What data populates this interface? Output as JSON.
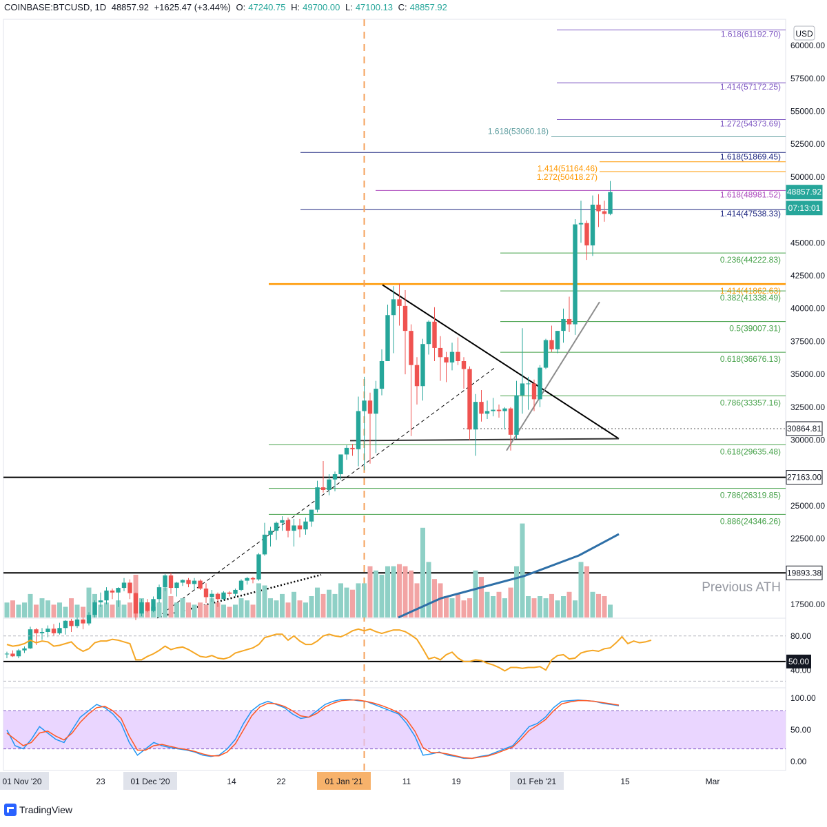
{
  "header": {
    "symbol": "COINBASE:BTCUSD, 1D",
    "price": "48857.92",
    "change": "+1625.47 (+3.44%)",
    "o_label": "O:",
    "o_value": "47240.75",
    "h_label": "H:",
    "h_value": "49700.00",
    "l_label": "L:",
    "l_value": "47100.13",
    "c_label": "C:",
    "c_value": "48857.92"
  },
  "currency_badge": "USD",
  "annotation": "Previous ATH",
  "branding": "TradingView",
  "colors": {
    "up": "#26a69a",
    "down": "#ef5350",
    "fib_green": "#43a047",
    "fib_purple": "#7e57c2",
    "fib_blue": "#1a237e",
    "fib_orange": "#ff9800",
    "fib_magenta": "#ab47bc",
    "rsi": "#f5a623",
    "stoch_k": "#2196f3",
    "stoch_d": "#ff5722",
    "ma": "#2e6fa7",
    "stoch_band": "#e1c4ff"
  },
  "chart_data": {
    "type": "candlestick",
    "symbol": "COINBASE:BTCUSD",
    "timeframe": "1D",
    "price_axis": {
      "ticks": [
        "60000.00",
        "57500.00",
        "55000.00",
        "52500.00",
        "50000.00",
        "45000.00",
        "42500.00",
        "40000.00",
        "37500.00",
        "35000.00",
        "32500.00",
        "30000.00",
        "25000.00",
        "22500.00",
        "17500.00"
      ],
      "ylim": [
        16500,
        62000
      ],
      "tags": [
        {
          "label": "48857.92",
          "value": 48857.92,
          "color": "#26a69a"
        },
        {
          "label": "07:13:01",
          "value": 47650,
          "color": "#26a69a"
        },
        {
          "label": "30864.81",
          "value": 30864.81,
          "color": "#ffffff"
        },
        {
          "label": "27163.00",
          "value": 27163,
          "color": "#ffffff"
        },
        {
          "label": "19893.38",
          "value": 19893.38,
          "color": "#ffffff"
        }
      ]
    },
    "x_axis": {
      "ticks": [
        "01 Nov '20",
        "23",
        "01 Dec '20",
        "14",
        "22",
        "01 Jan '21",
        "11",
        "19",
        "01 Feb '21",
        "15",
        "Mar"
      ],
      "highlighted": [
        "01 Nov '20",
        "01 Dec '20",
        "01 Jan '21",
        "01 Feb '21"
      ]
    },
    "fib_levels": [
      {
        "label": "1.618(61192.70)",
        "value": 61192.7,
        "color": "#7e57c2"
      },
      {
        "label": "1.414(57172.25)",
        "value": 57172.25,
        "color": "#7e57c2"
      },
      {
        "label": "1.272(54373.69)",
        "value": 54373.69,
        "color": "#7e57c2"
      },
      {
        "label": "1.618(53060.18)",
        "value": 53060.18,
        "color": "#5f9ea0"
      },
      {
        "label": "1.618(51869.45)",
        "value": 51869.45,
        "color": "#1a237e"
      },
      {
        "label": "1.414(51164.46)",
        "value": 51164.46,
        "color": "#ff9800"
      },
      {
        "label": "1.272(50418.27)",
        "value": 50418.27,
        "color": "#ff9800"
      },
      {
        "label": "1.618(48981.52)",
        "value": 48981.52,
        "color": "#ab47bc"
      },
      {
        "label": "1.414(47538.33)",
        "value": 47538.33,
        "color": "#1a237e"
      },
      {
        "label": "0.236(44222.83)",
        "value": 44222.83,
        "color": "#43a047"
      },
      {
        "label": "1.414(41862.63)",
        "value": 41862.63,
        "color": "#ff9800"
      },
      {
        "label": "0.382(41338.49)",
        "value": 41338.49,
        "color": "#43a047"
      },
      {
        "label": "0.5(39007.31)",
        "value": 39007.31,
        "color": "#43a047"
      },
      {
        "label": "0.618(36676.13)",
        "value": 36676.13,
        "color": "#43a047"
      },
      {
        "label": "0.786(33357.16)",
        "value": 33357.16,
        "color": "#43a047"
      },
      {
        "label": "0.618(29635.48)",
        "value": 29635.48,
        "color": "#43a047"
      },
      {
        "label": "0.786(26319.85)",
        "value": 26319.85,
        "color": "#43a047"
      },
      {
        "label": "0.886(24346.26)",
        "value": 24346.26,
        "color": "#43a047"
      }
    ],
    "candles": [
      {
        "o": 13700,
        "h": 13900,
        "l": 13400,
        "c": 13750
      },
      {
        "o": 13750,
        "h": 14000,
        "l": 13500,
        "c": 13550
      },
      {
        "o": 13550,
        "h": 14100,
        "l": 13400,
        "c": 14000
      },
      {
        "o": 14000,
        "h": 14300,
        "l": 13800,
        "c": 14150
      },
      {
        "o": 14150,
        "h": 15800,
        "l": 14100,
        "c": 15600
      },
      {
        "o": 15600,
        "h": 15700,
        "l": 14400,
        "c": 15300
      },
      {
        "o": 15300,
        "h": 15700,
        "l": 14800,
        "c": 15400
      },
      {
        "o": 15400,
        "h": 15900,
        "l": 15000,
        "c": 15650
      },
      {
        "o": 15650,
        "h": 16000,
        "l": 15100,
        "c": 15300
      },
      {
        "o": 15300,
        "h": 16100,
        "l": 15200,
        "c": 15700
      },
      {
        "o": 15700,
        "h": 16300,
        "l": 15200,
        "c": 16250
      },
      {
        "o": 16250,
        "h": 16400,
        "l": 15400,
        "c": 15850
      },
      {
        "o": 15850,
        "h": 16500,
        "l": 15700,
        "c": 16350
      },
      {
        "o": 16350,
        "h": 16500,
        "l": 15600,
        "c": 16050
      },
      {
        "o": 16050,
        "h": 16900,
        "l": 15900,
        "c": 16700
      },
      {
        "o": 16700,
        "h": 17800,
        "l": 16500,
        "c": 17650
      },
      {
        "o": 17650,
        "h": 18400,
        "l": 17300,
        "c": 17800
      },
      {
        "o": 17800,
        "h": 18800,
        "l": 17500,
        "c": 18550
      },
      {
        "o": 18550,
        "h": 18700,
        "l": 17900,
        "c": 18400
      },
      {
        "o": 18400,
        "h": 18800,
        "l": 17300,
        "c": 18750
      },
      {
        "o": 18750,
        "h": 19500,
        "l": 18500,
        "c": 19150
      },
      {
        "o": 19150,
        "h": 19400,
        "l": 17900,
        "c": 18350
      },
      {
        "o": 18350,
        "h": 18400,
        "l": 16300,
        "c": 16800
      },
      {
        "o": 16800,
        "h": 17900,
        "l": 16600,
        "c": 17650
      },
      {
        "o": 17650,
        "h": 17900,
        "l": 16900,
        "c": 17000
      },
      {
        "o": 17000,
        "h": 18100,
        "l": 16900,
        "c": 17900
      },
      {
        "o": 17900,
        "h": 19000,
        "l": 17600,
        "c": 18800
      },
      {
        "o": 18800,
        "h": 19800,
        "l": 18500,
        "c": 19700
      },
      {
        "o": 19700,
        "h": 19900,
        "l": 18300,
        "c": 18750
      },
      {
        "o": 18750,
        "h": 19200,
        "l": 18100,
        "c": 19150
      },
      {
        "o": 19150,
        "h": 19400,
        "l": 18900,
        "c": 19350
      },
      {
        "o": 19350,
        "h": 19500,
        "l": 18800,
        "c": 19050
      },
      {
        "o": 19050,
        "h": 19500,
        "l": 18600,
        "c": 19300
      },
      {
        "o": 19300,
        "h": 19400,
        "l": 18600,
        "c": 18700
      },
      {
        "o": 18700,
        "h": 19100,
        "l": 17600,
        "c": 18050
      },
      {
        "o": 18050,
        "h": 18600,
        "l": 17700,
        "c": 18300
      },
      {
        "o": 18300,
        "h": 18400,
        "l": 17300,
        "c": 17900
      },
      {
        "o": 17900,
        "h": 18500,
        "l": 17800,
        "c": 18400
      },
      {
        "o": 18400,
        "h": 18500,
        "l": 18100,
        "c": 18300
      },
      {
        "o": 18300,
        "h": 18700,
        "l": 18100,
        "c": 18600
      },
      {
        "o": 18600,
        "h": 19400,
        "l": 18500,
        "c": 19300
      },
      {
        "o": 19300,
        "h": 19600,
        "l": 19000,
        "c": 19500
      },
      {
        "o": 19500,
        "h": 19600,
        "l": 19100,
        "c": 19400
      },
      {
        "o": 19400,
        "h": 21400,
        "l": 19300,
        "c": 21300
      },
      {
        "o": 21300,
        "h": 23700,
        "l": 21200,
        "c": 22800
      },
      {
        "o": 22800,
        "h": 23400,
        "l": 21900,
        "c": 23100
      },
      {
        "o": 23100,
        "h": 23800,
        "l": 22400,
        "c": 23700
      },
      {
        "o": 23700,
        "h": 24200,
        "l": 23100,
        "c": 23900
      },
      {
        "o": 23900,
        "h": 24100,
        "l": 22600,
        "c": 23100
      },
      {
        "o": 23100,
        "h": 24000,
        "l": 21900,
        "c": 23500
      },
      {
        "o": 23500,
        "h": 24000,
        "l": 22600,
        "c": 23200
      },
      {
        "o": 23200,
        "h": 24100,
        "l": 22800,
        "c": 23800
      },
      {
        "o": 23800,
        "h": 24600,
        "l": 23400,
        "c": 24700
      },
      {
        "o": 24700,
        "h": 26900,
        "l": 24500,
        "c": 26400
      },
      {
        "o": 26400,
        "h": 28400,
        "l": 26000,
        "c": 26200
      },
      {
        "o": 26200,
        "h": 27400,
        "l": 25800,
        "c": 27000
      },
      {
        "o": 27000,
        "h": 27600,
        "l": 26100,
        "c": 27400
      },
      {
        "o": 27400,
        "h": 28600,
        "l": 27000,
        "c": 28900
      },
      {
        "o": 28900,
        "h": 29600,
        "l": 28500,
        "c": 29400
      },
      {
        "o": 29400,
        "h": 29700,
        "l": 28800,
        "c": 29300
      },
      {
        "o": 29300,
        "h": 33300,
        "l": 28000,
        "c": 32200
      },
      {
        "o": 32200,
        "h": 34800,
        "l": 27700,
        "c": 33000
      },
      {
        "o": 33000,
        "h": 33600,
        "l": 28200,
        "c": 32000
      },
      {
        "o": 32000,
        "h": 34500,
        "l": 29000,
        "c": 33900
      },
      {
        "o": 33900,
        "h": 36900,
        "l": 33400,
        "c": 36000
      },
      {
        "o": 36000,
        "h": 40300,
        "l": 36000,
        "c": 39500
      },
      {
        "o": 39500,
        "h": 41700,
        "l": 36600,
        "c": 40700
      },
      {
        "o": 40700,
        "h": 41900,
        "l": 38700,
        "c": 40200
      },
      {
        "o": 40200,
        "h": 41400,
        "l": 35000,
        "c": 38300
      },
      {
        "o": 38300,
        "h": 38800,
        "l": 30300,
        "c": 35700
      },
      {
        "o": 35700,
        "h": 36300,
        "l": 32700,
        "c": 34100
      },
      {
        "o": 34100,
        "h": 37700,
        "l": 33000,
        "c": 37300
      },
      {
        "o": 37300,
        "h": 39100,
        "l": 36500,
        "c": 39000
      },
      {
        "o": 39000,
        "h": 40100,
        "l": 36000,
        "c": 37000
      },
      {
        "o": 37000,
        "h": 37900,
        "l": 34500,
        "c": 36300
      },
      {
        "o": 36300,
        "h": 36700,
        "l": 34400,
        "c": 35900
      },
      {
        "o": 35900,
        "h": 37400,
        "l": 35300,
        "c": 36700
      },
      {
        "o": 36700,
        "h": 37800,
        "l": 35700,
        "c": 36000
      },
      {
        "o": 36000,
        "h": 36300,
        "l": 33900,
        "c": 35400
      },
      {
        "o": 35400,
        "h": 35600,
        "l": 30000,
        "c": 30800
      },
      {
        "o": 30800,
        "h": 33500,
        "l": 28800,
        "c": 32900
      },
      {
        "o": 32900,
        "h": 33800,
        "l": 31400,
        "c": 32000
      },
      {
        "o": 32000,
        "h": 33000,
        "l": 31600,
        "c": 32200
      },
      {
        "o": 32200,
        "h": 33200,
        "l": 31800,
        "c": 32300
      },
      {
        "o": 32300,
        "h": 32700,
        "l": 31700,
        "c": 32200
      },
      {
        "o": 32200,
        "h": 32500,
        "l": 30800,
        "c": 32400
      },
      {
        "o": 32400,
        "h": 32500,
        "l": 29200,
        "c": 30400
      },
      {
        "o": 30400,
        "h": 34500,
        "l": 30100,
        "c": 33400
      },
      {
        "o": 33400,
        "h": 38500,
        "l": 32000,
        "c": 34300
      },
      {
        "o": 34300,
        "h": 34800,
        "l": 32300,
        "c": 34300
      },
      {
        "o": 34300,
        "h": 34600,
        "l": 32200,
        "c": 33100
      },
      {
        "o": 33100,
        "h": 35700,
        "l": 32500,
        "c": 35500
      },
      {
        "o": 35500,
        "h": 37700,
        "l": 35400,
        "c": 37600
      },
      {
        "o": 37600,
        "h": 38700,
        "l": 36700,
        "c": 36900
      },
      {
        "o": 36900,
        "h": 38300,
        "l": 36600,
        "c": 38300
      },
      {
        "o": 38300,
        "h": 40000,
        "l": 37400,
        "c": 39200
      },
      {
        "o": 39200,
        "h": 40900,
        "l": 38200,
        "c": 38800
      },
      {
        "o": 38800,
        "h": 46800,
        "l": 38000,
        "c": 46400
      },
      {
        "o": 46400,
        "h": 48200,
        "l": 45000,
        "c": 46500
      },
      {
        "o": 46500,
        "h": 46700,
        "l": 43700,
        "c": 44800
      },
      {
        "o": 44800,
        "h": 48600,
        "l": 44000,
        "c": 47900
      },
      {
        "o": 47900,
        "h": 48700,
        "l": 46200,
        "c": 47400
      },
      {
        "o": 47400,
        "h": 48200,
        "l": 46600,
        "c": 47200
      },
      {
        "o": 47200,
        "h": 49700,
        "l": 47100,
        "c": 48858
      }
    ],
    "volume_relative": [
      0.35,
      0.4,
      0.3,
      0.35,
      0.55,
      0.3,
      0.45,
      0.4,
      0.3,
      0.35,
      0.25,
      0.45,
      0.3,
      0.25,
      0.7,
      0.55,
      0.3,
      0.35,
      0.3,
      0.4,
      0.3,
      0.35,
      1.0,
      0.45,
      0.3,
      0.25,
      0.35,
      0.7,
      0.5,
      0.35,
      0.45,
      0.35,
      0.3,
      0.35,
      0.3,
      0.45,
      0.35,
      0.3,
      0.25,
      0.3,
      0.45,
      0.4,
      0.3,
      0.8,
      0.75,
      0.45,
      0.4,
      0.55,
      0.35,
      0.6,
      0.4,
      0.35,
      0.5,
      0.7,
      0.55,
      0.65,
      0.55,
      0.8,
      0.7,
      0.65,
      0.8,
      0.8,
      1.2,
      1.1,
      1.0,
      1.2,
      1.2,
      1.25,
      1.2,
      1.1,
      0.8,
      2.1,
      1.3,
      0.9,
      0.8,
      0.5,
      0.45,
      0.55,
      0.4,
      0.45,
      1.1,
      0.95,
      0.6,
      0.5,
      0.6,
      0.45,
      0.7,
      1.2,
      2.2,
      0.5,
      0.45,
      0.5,
      0.45,
      0.55,
      0.4,
      0.5,
      0.6,
      0.4,
      1.3,
      1.2,
      0.6,
      0.55,
      0.5,
      0.3
    ],
    "rsi": {
      "ticks": [
        "80.00",
        "50.00",
        "40.00"
      ],
      "values": [
        70,
        68,
        69,
        71,
        75,
        72,
        74,
        73,
        68,
        69,
        71,
        73,
        66,
        62,
        65,
        72,
        74,
        74,
        76,
        75,
        73,
        71,
        52,
        52,
        56,
        59,
        63,
        68,
        64,
        66,
        67,
        64,
        60,
        56,
        55,
        57,
        54,
        53,
        55,
        60,
        62,
        64,
        66,
        70,
        78,
        80,
        82,
        82,
        75,
        80,
        74,
        70,
        70,
        74,
        80,
        82,
        80,
        79,
        82,
        86,
        88,
        86,
        88,
        85,
        83,
        85,
        87,
        87,
        85,
        81,
        76,
        65,
        53,
        55,
        52,
        58,
        61,
        54,
        50,
        50,
        52,
        51,
        48,
        46,
        43,
        39,
        43,
        43,
        42,
        43,
        43,
        44,
        40,
        52,
        57,
        58,
        53,
        54,
        60,
        62,
        63,
        62,
        65,
        66,
        72,
        79,
        71,
        74,
        72,
        73,
        75
      ]
    },
    "stoch_rsi": {
      "ticks": [
        "100.00",
        "50.00",
        "0.00"
      ],
      "k": [
        50,
        25,
        20,
        35,
        55,
        45,
        35,
        30,
        50,
        70,
        80,
        90,
        85,
        75,
        60,
        30,
        10,
        20,
        30,
        25,
        22,
        20,
        18,
        15,
        10,
        8,
        10,
        20,
        35,
        60,
        80,
        90,
        95,
        90,
        85,
        75,
        68,
        70,
        80,
        90,
        95,
        98,
        98,
        96,
        95,
        90,
        85,
        80,
        75,
        60,
        40,
        10,
        12,
        15,
        10,
        8,
        5,
        5,
        8,
        10,
        15,
        20,
        25,
        40,
        55,
        60,
        70,
        85,
        95,
        96,
        97,
        96,
        95,
        92,
        90,
        88
      ],
      "d": [
        45,
        35,
        25,
        30,
        45,
        48,
        40,
        34,
        45,
        62,
        75,
        85,
        87,
        80,
        68,
        40,
        18,
        18,
        25,
        27,
        24,
        21,
        19,
        16,
        12,
        9,
        9,
        15,
        28,
        50,
        72,
        86,
        92,
        91,
        87,
        80,
        72,
        70,
        76,
        86,
        92,
        96,
        97,
        97,
        95,
        92,
        88,
        83,
        77,
        66,
        48,
        22,
        14,
        14,
        12,
        9,
        6,
        5,
        7,
        9,
        13,
        18,
        23,
        35,
        49,
        57,
        66,
        80,
        91,
        94,
        96,
        96,
        95,
        93,
        91,
        89
      ]
    }
  }
}
